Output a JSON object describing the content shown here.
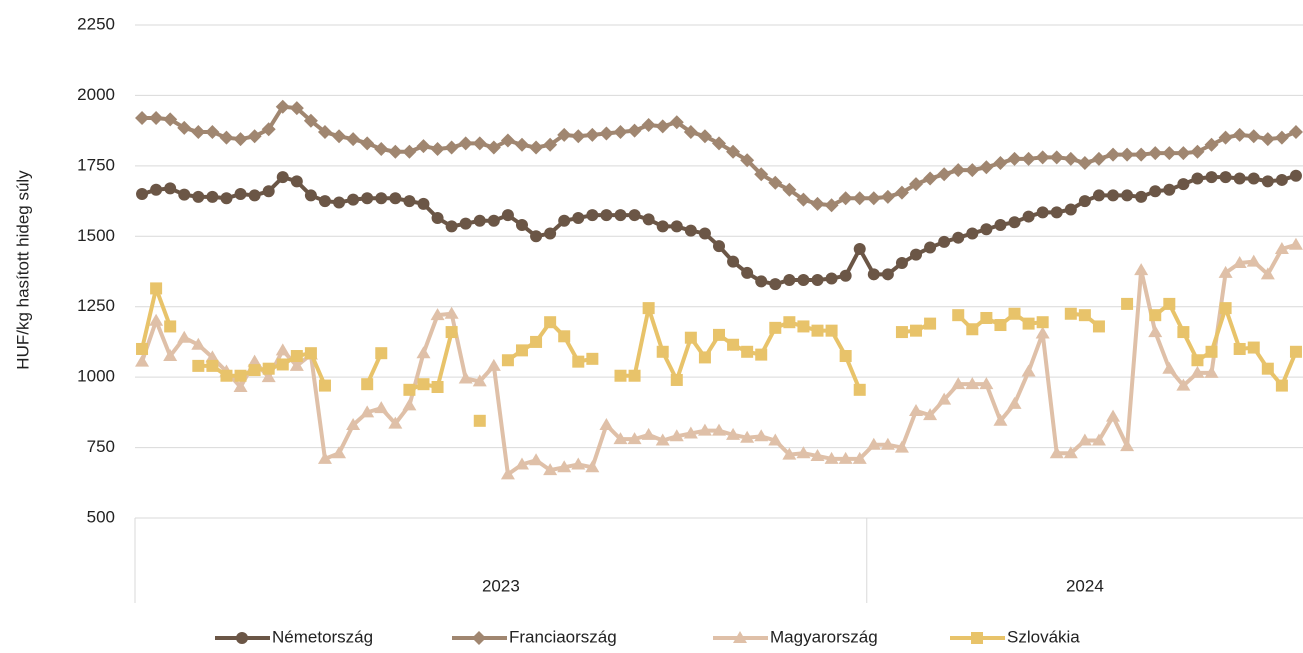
{
  "chart_data": {
    "type": "line",
    "y_label": "HUF/kg hasított hideg súly",
    "ylim": [
      500,
      2250
    ],
    "yticks": [
      500,
      750,
      1000,
      1250,
      1500,
      1750,
      2000,
      2250
    ],
    "grid": true,
    "legend": "bottom",
    "x_groups": [
      {
        "label": "2023",
        "count": 52
      },
      {
        "label": "2024",
        "count": 31
      }
    ],
    "categories": [
      null,
      null,
      null,
      null,
      null,
      null,
      null,
      null,
      null,
      null,
      null,
      null,
      null,
      null,
      null,
      null,
      null,
      null,
      null,
      null,
      null,
      null,
      null,
      null,
      null,
      null,
      null,
      null,
      null,
      null,
      null,
      null,
      null,
      null,
      null,
      null,
      null,
      null,
      null,
      null,
      null,
      null,
      null,
      null,
      null,
      null,
      null,
      null,
      null,
      null,
      null,
      null,
      null,
      null,
      null,
      null,
      null,
      null,
      null,
      null,
      null,
      null,
      null,
      null,
      null,
      null,
      null,
      null,
      null,
      null,
      null,
      null,
      null,
      null,
      null,
      null,
      null,
      null,
      null,
      null,
      null,
      null,
      null
    ],
    "series": [
      {
        "name": "Németország",
        "color": "#6b5646",
        "marker": "circle",
        "values": [
          1650,
          1665,
          1670,
          1648,
          1640,
          1640,
          1635,
          1650,
          1645,
          1660,
          1710,
          1695,
          1645,
          1625,
          1620,
          1630,
          1635,
          1635,
          1635,
          1625,
          1615,
          1565,
          1535,
          1545,
          1555,
          1555,
          1575,
          1540,
          1500,
          1510,
          1555,
          1565,
          1575,
          1575,
          1575,
          1575,
          1560,
          1535,
          1535,
          1520,
          1510,
          1465,
          1410,
          1370,
          1340,
          1330,
          1345,
          1345,
          1345,
          1350,
          1360,
          1455,
          1365,
          1365,
          1405,
          1435,
          1460,
          1480,
          1495,
          1510,
          1525,
          1540,
          1550,
          1570,
          1585,
          1585,
          1595,
          1625,
          1645,
          1645,
          1645,
          1640,
          1660,
          1665,
          1685,
          1705,
          1710,
          1710,
          1705,
          1705,
          1695,
          1700,
          1715
        ]
      },
      {
        "name": "Franciaország",
        "color": "#a08670",
        "marker": "diamond",
        "values": [
          1920,
          1920,
          1915,
          1885,
          1870,
          1870,
          1850,
          1845,
          1855,
          1880,
          1960,
          1955,
          1910,
          1870,
          1855,
          1845,
          1830,
          1810,
          1800,
          1800,
          1820,
          1810,
          1815,
          1830,
          1830,
          1815,
          1840,
          1825,
          1815,
          1825,
          1860,
          1855,
          1860,
          1865,
          1870,
          1875,
          1895,
          1890,
          1905,
          1870,
          1855,
          1830,
          1800,
          1770,
          1720,
          1690,
          1665,
          1630,
          1615,
          1610,
          1635,
          1635,
          1635,
          1640,
          1655,
          1685,
          1705,
          1720,
          1735,
          1735,
          1745,
          1760,
          1775,
          1775,
          1780,
          1780,
          1775,
          1760,
          1775,
          1790,
          1790,
          1790,
          1795,
          1795,
          1795,
          1800,
          1825,
          1850,
          1860,
          1855,
          1845,
          1850,
          1870
        ]
      },
      {
        "name": "Magyarország",
        "color": "#dfc0a8",
        "marker": "triangle",
        "values": [
          1055,
          1200,
          1075,
          1140,
          1115,
          1070,
          1020,
          965,
          1055,
          1000,
          1095,
          1040,
          1080,
          710,
          730,
          830,
          875,
          890,
          835,
          900,
          1085,
          1220,
          1225,
          995,
          985,
          1040,
          655,
          690,
          705,
          670,
          680,
          690,
          680,
          830,
          780,
          780,
          795,
          775,
          790,
          800,
          810,
          810,
          795,
          785,
          790,
          775,
          725,
          730,
          720,
          710,
          710,
          710,
          760,
          760,
          750,
          880,
          865,
          920,
          975,
          975,
          975,
          845,
          905,
          1020,
          1155,
          730,
          730,
          775,
          775,
          860,
          755,
          1380,
          1160,
          1030,
          970,
          1015,
          1015,
          1370,
          1405,
          1410,
          1365,
          1455,
          1470
        ]
      },
      {
        "name": "Szlovákia",
        "color": "#e8c36a",
        "marker": "square",
        "values": [
          1100,
          1315,
          1180,
          null,
          1040,
          1040,
          1005,
          1005,
          1025,
          1030,
          1045,
          1075,
          1085,
          970,
          null,
          null,
          975,
          1085,
          null,
          955,
          975,
          965,
          1160,
          null,
          845,
          null,
          1060,
          1095,
          1125,
          1195,
          1145,
          1055,
          1065,
          null,
          1005,
          1005,
          1245,
          1090,
          990,
          1140,
          1070,
          1150,
          1115,
          1090,
          1080,
          1175,
          1195,
          1180,
          1165,
          1165,
          1075,
          955,
          null,
          null,
          1160,
          1165,
          1190,
          null,
          1220,
          1170,
          1210,
          1185,
          1225,
          1190,
          1195,
          null,
          1225,
          1220,
          1180,
          null,
          1260,
          null,
          1220,
          1260,
          1160,
          1060,
          1090,
          1245,
          1100,
          1105,
          1030,
          970,
          1090
        ]
      }
    ]
  }
}
